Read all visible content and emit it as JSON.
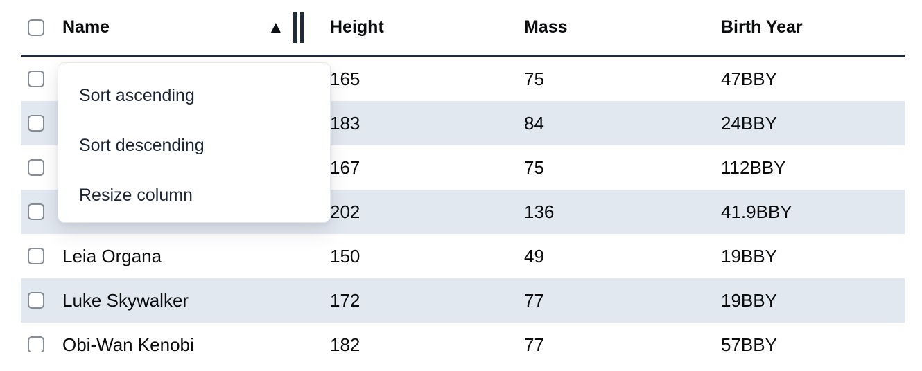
{
  "header": {
    "columns": [
      "Name",
      "Height",
      "Mass",
      "Birth Year"
    ],
    "sorted_column": "Name",
    "sort_direction": "ascending"
  },
  "icons": {
    "sort_ascending": "▲",
    "resize_handle": "double-vertical-bar",
    "checkbox": "unchecked"
  },
  "menu": {
    "items": [
      "Sort ascending",
      "Sort descending",
      "Resize column"
    ]
  },
  "rows": [
    {
      "name": "",
      "height": "165",
      "mass": "75",
      "birth_year": "47BBY",
      "checked": false
    },
    {
      "name": "",
      "height": "183",
      "mass": "84",
      "birth_year": "24BBY",
      "checked": false
    },
    {
      "name": "",
      "height": "167",
      "mass": "75",
      "birth_year": "112BBY",
      "checked": false
    },
    {
      "name": "",
      "height": "202",
      "mass": "136",
      "birth_year": "41.9BBY",
      "checked": false
    },
    {
      "name": "Leia Organa",
      "height": "150",
      "mass": "49",
      "birth_year": "19BBY",
      "checked": false
    },
    {
      "name": "Luke Skywalker",
      "height": "172",
      "mass": "77",
      "birth_year": "19BBY",
      "checked": false
    },
    {
      "name": "Obi-Wan Kenobi",
      "height": "182",
      "mass": "77",
      "birth_year": "57BBY",
      "checked": false
    }
  ],
  "colors": {
    "row_stripe": "#e2e8f0",
    "header_border": "#1f2a3d",
    "menu_text": "#1d2433",
    "cell_text": "#0b0c0e",
    "checkbox_border": "#858c95"
  }
}
